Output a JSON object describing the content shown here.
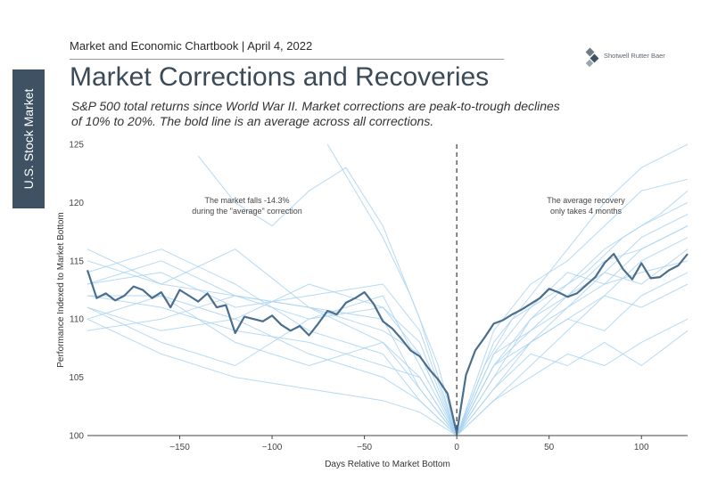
{
  "header": {
    "chartbook_line": "Market and Economic Chartbook | April 4, 2022",
    "side_tab": "U.S. Stock Market",
    "logo_text": "Shotwell Rutter Baer"
  },
  "title": "Market Corrections and Recoveries",
  "subtitle": "S&P 500 total returns since World War II. Market corrections are peak-to-trough declines of 10% to 20%. The bold line is an average across all corrections.",
  "colors": {
    "average_line": "#4a6e8e",
    "correction_lines": "#a9d3f2",
    "tab": "#3e5263",
    "zero_line": "#555555"
  },
  "chart_data": {
    "type": "line",
    "xlabel": "Days Relative to Market Bottom",
    "ylabel": "Performance Indexed to Market Bottom",
    "xlim": [
      -200,
      125
    ],
    "ylim": [
      100,
      125
    ],
    "x_ticks": [
      -150,
      -100,
      -50,
      0,
      50,
      100
    ],
    "y_ticks": [
      100,
      105,
      110,
      115,
      120,
      125
    ],
    "grid": false,
    "vertical_reference_line": {
      "x": 0,
      "style": "dashed"
    },
    "annotations": [
      {
        "text": [
          "The market falls -14.3%",
          "during the \"average\" correction"
        ]
      },
      {
        "text": [
          "The average recovery",
          "only takes 4 months"
        ]
      }
    ],
    "series": [
      {
        "role": "average",
        "x": [
          -200,
          -195,
          -190,
          -185,
          -180,
          -175,
          -170,
          -165,
          -160,
          -155,
          -150,
          -145,
          -140,
          -135,
          -130,
          -125,
          -120,
          -115,
          -110,
          -105,
          -100,
          -95,
          -90,
          -85,
          -80,
          -75,
          -70,
          -65,
          -60,
          -55,
          -50,
          -45,
          -40,
          -35,
          -30,
          -25,
          -20,
          -15,
          -10,
          -5,
          0,
          5,
          10,
          15,
          20,
          25,
          30,
          35,
          40,
          45,
          50,
          55,
          60,
          65,
          70,
          75,
          80,
          85,
          90,
          95,
          100,
          105,
          110,
          115,
          120,
          125
        ],
        "values": [
          114.2,
          111.8,
          112.2,
          111.6,
          112.0,
          112.8,
          112.5,
          111.8,
          112.3,
          111.0,
          112.5,
          112.0,
          111.5,
          112.2,
          111.0,
          111.2,
          108.8,
          110.2,
          110.0,
          109.8,
          110.3,
          109.5,
          109.0,
          109.4,
          108.6,
          109.6,
          110.7,
          110.4,
          111.4,
          111.8,
          112.3,
          111.3,
          109.8,
          109.2,
          108.3,
          107.3,
          106.8,
          105.7,
          104.8,
          103.6,
          100.2,
          105.2,
          107.3,
          108.4,
          109.6,
          109.9,
          110.4,
          110.8,
          111.3,
          111.8,
          112.6,
          112.3,
          111.9,
          112.2,
          112.9,
          113.6,
          114.8,
          115.6,
          114.3,
          113.4,
          114.8,
          113.5,
          113.6,
          114.2,
          114.6,
          115.6
        ]
      },
      {
        "role": "correction",
        "x": [
          -200,
          -160,
          -120,
          -80,
          -40,
          -20,
          0,
          20,
          40,
          60,
          80,
          100,
          125
        ],
        "values": [
          113,
          115,
          112,
          111,
          108,
          104,
          100,
          106,
          109,
          112,
          114,
          117,
          119
        ]
      },
      {
        "role": "correction",
        "x": [
          -200,
          -160,
          -120,
          -80,
          -40,
          -20,
          0,
          20,
          40,
          60,
          80,
          100,
          125
        ],
        "values": [
          111,
          108,
          106,
          110,
          112,
          106,
          100,
          104,
          107,
          106,
          108,
          106,
          109
        ]
      },
      {
        "role": "correction",
        "x": [
          -200,
          -160,
          -120,
          -80,
          -40,
          -20,
          0,
          20,
          40,
          60,
          80,
          100,
          125
        ],
        "values": [
          115,
          113,
          116,
          111,
          109,
          107,
          100,
          107,
          111,
          114,
          113,
          116,
          118
        ]
      },
      {
        "role": "correction",
        "x": [
          -200,
          -160,
          -120,
          -80,
          -40,
          -20,
          0,
          20,
          40,
          60,
          80,
          100,
          125
        ],
        "values": [
          112,
          111,
          109,
          108,
          106,
          105,
          100,
          108,
          112,
          116,
          120,
          123,
          125
        ]
      },
      {
        "role": "correction",
        "x": [
          -200,
          -160,
          -120,
          -80,
          -40,
          -20,
          0,
          20,
          40,
          60,
          80,
          100,
          125
        ],
        "values": [
          110,
          112,
          110,
          113,
          111,
          108,
          100,
          105,
          108,
          111,
          113,
          114,
          115
        ]
      },
      {
        "role": "correction",
        "x": [
          -200,
          -160,
          -120,
          -80,
          -40,
          -20,
          0,
          20,
          40,
          60,
          80,
          100,
          125
        ],
        "values": [
          114,
          116,
          113,
          109,
          107,
          103,
          100,
          103,
          106,
          109,
          112,
          115,
          117
        ]
      },
      {
        "role": "correction",
        "x": [
          -200,
          -160,
          -120,
          -80,
          -40,
          -20,
          0,
          20,
          40,
          60,
          80,
          100,
          125
        ],
        "values": [
          109,
          110,
          112,
          111,
          110,
          104,
          100,
          109,
          113,
          115,
          118,
          121,
          122
        ]
      },
      {
        "role": "correction",
        "x": [
          -140,
          -120,
          -100,
          -80,
          -60,
          -40,
          -20,
          0,
          20,
          40,
          60,
          80,
          100,
          125
        ],
        "values": [
          124,
          120,
          118,
          121,
          123,
          118,
          110,
          100,
          104,
          108,
          110,
          112,
          111,
          113
        ]
      },
      {
        "role": "correction",
        "x": [
          -200,
          -160,
          -120,
          -80,
          -40,
          -20,
          0,
          20,
          40,
          60,
          80,
          100,
          125
        ],
        "values": [
          113,
          114,
          111,
          112,
          113,
          109,
          100,
          106,
          108,
          110,
          109,
          112,
          114
        ]
      },
      {
        "role": "correction",
        "x": [
          -200,
          -160,
          -120,
          -80,
          -40,
          -20,
          0,
          20,
          40,
          60,
          80,
          100,
          125
        ],
        "values": [
          111,
          109,
          110,
          107,
          105,
          103,
          100,
          105,
          110,
          113,
          116,
          118,
          120
        ]
      },
      {
        "role": "correction",
        "x": [
          -70,
          -55,
          -40,
          -25,
          -10,
          0,
          15,
          30,
          50,
          70,
          90,
          110,
          125
        ],
        "values": [
          125,
          121,
          117,
          112,
          106,
          100,
          106,
          110,
          112,
          114,
          117,
          119,
          121
        ]
      },
      {
        "role": "correction",
        "x": [
          -200,
          -160,
          -120,
          -80,
          -40,
          -20,
          0,
          20,
          40,
          60,
          80,
          100,
          125
        ],
        "values": [
          116,
          113,
          112,
          110,
          111,
          107,
          100,
          107,
          109,
          111,
          114,
          113,
          116
        ]
      },
      {
        "role": "correction",
        "x": [
          -200,
          -160,
          -120,
          -80,
          -40,
          -20,
          0,
          20,
          40,
          60,
          80,
          100,
          125
        ],
        "values": [
          110,
          107,
          105,
          104,
          103,
          102,
          100,
          103,
          105,
          107,
          106,
          108,
          110
        ]
      },
      {
        "role": "correction",
        "x": [
          -200,
          -160,
          -120,
          -80,
          -40,
          -20,
          0,
          20,
          40,
          60,
          80,
          100,
          125
        ],
        "values": [
          112,
          112,
          108,
          106,
          108,
          105,
          100,
          106,
          110,
          112,
          115,
          116,
          118
        ]
      }
    ]
  }
}
